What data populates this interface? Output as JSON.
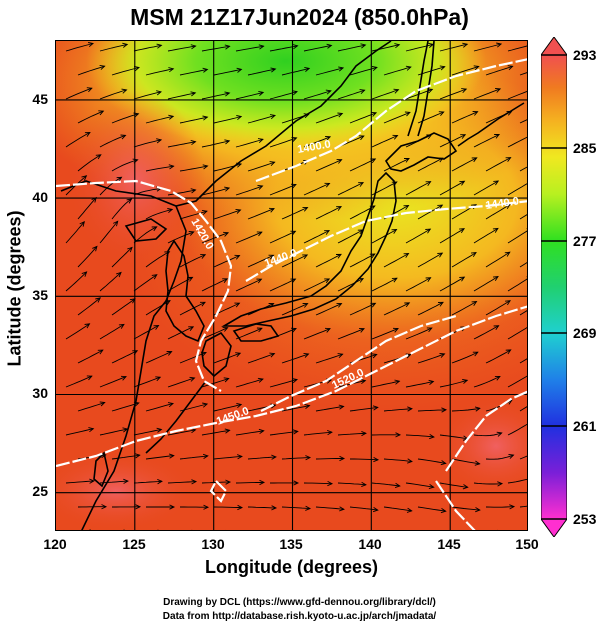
{
  "title": "MSM 21Z17Jun2024 (850.0hPa)",
  "x_axis": {
    "label": "Longitude (degrees)",
    "ticks": [
      "120",
      "125",
      "130",
      "135",
      "140",
      "145",
      "150"
    ]
  },
  "y_axis": {
    "label": "Latitude  (degrees)",
    "ticks": [
      "45",
      "40",
      "35",
      "30",
      "25"
    ]
  },
  "colorbar": {
    "ticks": [
      "293",
      "285",
      "277",
      "269",
      "261",
      "253"
    ],
    "colors": [
      "#ff2fd0",
      "#5a1fd8",
      "#1f3fe8",
      "#1fa0e8",
      "#1fd0c8",
      "#20d060",
      "#30e020",
      "#b8f020",
      "#f0e820",
      "#f5b020",
      "#f07a20",
      "#e84a20",
      "#f05050"
    ]
  },
  "contour_labels": [
    "1380.0",
    "1380.0",
    "1400.0",
    "1420.0",
    "1440.0",
    "1450.0",
    "1500.0",
    "1520.0"
  ],
  "credits": [
    "Drawing by DCL (https://www.gfd-dennou.org/library/dcl/)",
    "Data from http://database.rish.kyoto-u.ac.jp/arch/jmadata/"
  ],
  "chart_data": {
    "type": "heatmap",
    "title": "MSM 21Z17Jun2024 (850.0hPa)",
    "xlabel": "Longitude (degrees)",
    "ylabel": "Latitude  (degrees)",
    "xlim": [
      120,
      150
    ],
    "ylim": [
      22.5,
      47.5
    ],
    "colorbar_range": [
      253,
      293
    ],
    "colorbar_ticks": [
      293,
      285,
      277,
      269,
      261,
      253
    ],
    "grid": true,
    "contour_lines": [
      1380,
      1400,
      1420,
      1440,
      1450,
      1500,
      1520
    ]
  }
}
